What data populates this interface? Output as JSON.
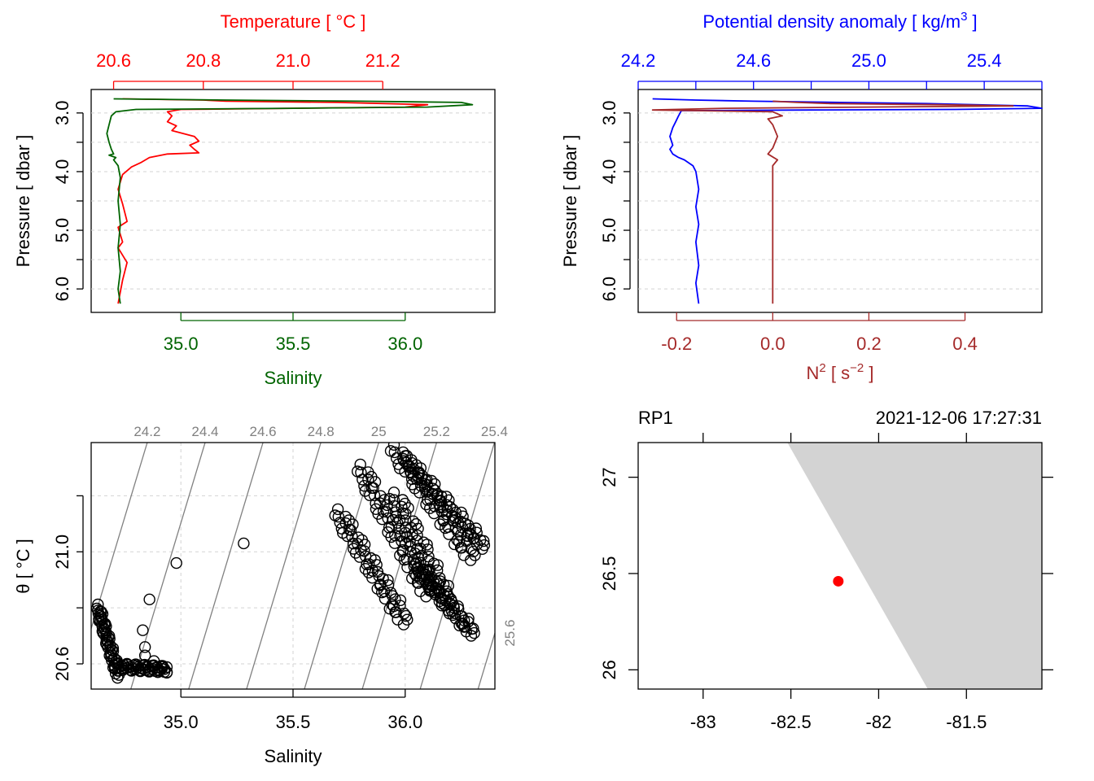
{
  "colors": {
    "temperature": "#ff0000",
    "salinity": "#006400",
    "density": "#0000ff",
    "n2": "#a52a2a",
    "isopycnal": "#808080",
    "grid": "#d3d3d3",
    "land": "#d3d3d3",
    "station": "#ff0000"
  },
  "chart_data": [
    {
      "id": "profile_ts",
      "type": "line",
      "top_axis_title": "Temperature [ °C ]",
      "top_ticks": [
        "20.6",
        "20.8",
        "21.0",
        "21.2"
      ],
      "bottom_axis_title": "Salinity",
      "bottom_ticks": [
        "35.0",
        "35.5",
        "36.0"
      ],
      "ylabel": "Pressure [ dbar ]",
      "y_ticks": [
        "3.0",
        "4.0",
        "5.0",
        "6.0"
      ],
      "temperature_range": [
        20.55,
        21.45
      ],
      "salinity_range": [
        34.6,
        36.4
      ],
      "pressure_range": [
        2.6,
        6.4
      ],
      "y_reversed": true,
      "grid": true,
      "series": [
        {
          "name": "Temperature",
          "x": [
            20.62,
            20.8,
            20.85,
            21.1,
            21.3,
            21.25,
            21.0,
            20.75,
            20.72,
            20.73,
            20.72,
            20.74,
            20.73,
            20.78,
            20.79,
            20.77,
            20.78,
            20.79,
            20.72,
            20.68,
            20.66,
            20.64,
            20.62,
            20.61,
            20.62,
            20.63,
            20.61,
            20.62,
            20.61,
            20.63,
            20.62,
            20.61
          ],
          "y": [
            2.76,
            2.78,
            2.8,
            2.82,
            2.86,
            2.9,
            2.92,
            2.94,
            2.98,
            3.05,
            3.15,
            3.22,
            3.3,
            3.4,
            3.48,
            3.55,
            3.62,
            3.68,
            3.7,
            3.76,
            3.85,
            3.92,
            4.05,
            4.3,
            4.55,
            4.85,
            4.95,
            5.2,
            5.3,
            5.55,
            5.85,
            6.25
          ]
        },
        {
          "name": "Salinity",
          "x": [
            34.7,
            35.2,
            35.8,
            36.25,
            36.3,
            36.1,
            35.5,
            34.8,
            34.71,
            34.69,
            34.68,
            34.67,
            34.68,
            34.69,
            34.7,
            34.68,
            34.71,
            34.7,
            34.72,
            34.73,
            34.72,
            34.73,
            34.72,
            34.73,
            34.72,
            34.73
          ],
          "y": [
            2.76,
            2.78,
            2.8,
            2.82,
            2.86,
            2.9,
            2.92,
            2.94,
            2.98,
            3.05,
            3.2,
            3.35,
            3.5,
            3.62,
            3.7,
            3.72,
            3.76,
            3.8,
            3.9,
            4.1,
            4.5,
            4.9,
            5.3,
            5.7,
            6.0,
            6.25
          ]
        }
      ]
    },
    {
      "id": "profile_density",
      "type": "line",
      "top_axis_title_main": "Potential density anomaly [ kg/m",
      "top_axis_title_sup": "3",
      "top_axis_title_end": " ]",
      "top_ticks": [
        "24.2",
        "24.6",
        "25.0",
        "25.4"
      ],
      "bottom_axis_title_main": "N",
      "bottom_axis_title_sup": "2",
      "bottom_axis_title_mid": " [ s",
      "bottom_axis_title_sup2": "−2",
      "bottom_axis_title_end": " ]",
      "bottom_ticks": [
        "-0.2",
        "0.0",
        "0.2",
        "0.4"
      ],
      "ylabel": "Pressure [ dbar ]",
      "y_ticks": [
        "3.0",
        "4.0",
        "5.0",
        "6.0"
      ],
      "density_range": [
        24.2,
        25.6
      ],
      "n2_range": [
        -0.28,
        0.56
      ],
      "pressure_range": [
        2.6,
        6.4
      ],
      "y_reversed": true,
      "grid": true,
      "series": [
        {
          "name": "Potential density anomaly",
          "x": [
            24.25,
            24.4,
            24.6,
            24.9,
            25.2,
            25.55,
            25.6,
            25.3,
            24.8,
            24.35,
            24.34,
            24.33,
            24.32,
            24.31,
            24.32,
            24.31,
            24.32,
            24.34,
            24.36,
            24.39,
            24.4,
            24.41,
            24.4,
            24.41,
            24.4,
            24.41,
            24.4,
            24.41
          ],
          "y": [
            2.76,
            2.78,
            2.8,
            2.82,
            2.84,
            2.88,
            2.92,
            2.94,
            2.95,
            2.96,
            3.05,
            3.15,
            3.25,
            3.4,
            3.55,
            3.62,
            3.7,
            3.76,
            3.8,
            3.9,
            4.0,
            4.3,
            4.6,
            4.9,
            5.2,
            5.6,
            5.9,
            6.25
          ]
        },
        {
          "name": "N2",
          "x": [
            0.0,
            0.05,
            0.12,
            0.35,
            0.5,
            0.2,
            -0.1,
            -0.25,
            0.0,
            0.02,
            -0.01,
            0.0,
            0.01,
            0.0,
            -0.01,
            0.01,
            0.0,
            0.0,
            0.0,
            0.0,
            0.0,
            0.0
          ],
          "y": [
            2.8,
            2.82,
            2.84,
            2.86,
            2.88,
            2.9,
            2.92,
            2.95,
            2.98,
            3.05,
            3.1,
            3.2,
            3.4,
            3.6,
            3.7,
            3.8,
            3.9,
            4.2,
            4.8,
            5.4,
            5.9,
            6.25
          ]
        }
      ]
    },
    {
      "id": "ts_diagram",
      "type": "scatter",
      "xlabel": "Salinity",
      "ylabel": "θ [ °C ]",
      "x_ticks": [
        "35.0",
        "35.5",
        "36.0"
      ],
      "y_ticks": [
        "20.6",
        "21.0"
      ],
      "xlim": [
        34.6,
        36.4
      ],
      "ylim": [
        20.51,
        21.39
      ],
      "grid": true,
      "isopycnal_labels": [
        "24.2",
        "24.4",
        "24.6",
        "24.8",
        "25",
        "25.2",
        "25.4",
        "25.6"
      ],
      "clusters": [
        {
          "x0": 34.63,
          "y0": 20.8,
          "x1": 34.72,
          "y1": 20.56,
          "width": 0.02
        },
        {
          "x0": 34.72,
          "y0": 20.59,
          "x1": 34.94,
          "y1": 20.58,
          "width": 0.02
        },
        {
          "x0": 35.7,
          "y0": 21.14,
          "x1": 36.0,
          "y1": 20.75,
          "width": 0.06
        },
        {
          "x0": 35.8,
          "y0": 21.3,
          "x1": 36.1,
          "y1": 20.85,
          "width": 0.06
        },
        {
          "x0": 35.95,
          "y0": 21.37,
          "x1": 36.3,
          "y1": 20.98,
          "width": 0.07
        },
        {
          "x0": 36.0,
          "y0": 21.33,
          "x1": 36.35,
          "y1": 21.02,
          "width": 0.05
        },
        {
          "x0": 35.95,
          "y0": 21.2,
          "x1": 36.2,
          "y1": 20.8,
          "width": 0.07
        },
        {
          "x0": 36.05,
          "y0": 20.95,
          "x1": 36.3,
          "y1": 20.71,
          "width": 0.05
        }
      ],
      "points": [
        {
          "x": 34.83,
          "y": 20.72
        },
        {
          "x": 34.84,
          "y": 20.66
        },
        {
          "x": 34.86,
          "y": 20.83
        },
        {
          "x": 34.98,
          "y": 20.96
        },
        {
          "x": 35.28,
          "y": 21.03
        },
        {
          "x": 34.84,
          "y": 20.63
        },
        {
          "x": 34.88,
          "y": 20.61
        }
      ]
    },
    {
      "id": "station_map",
      "type": "scatter",
      "station_label": "RP1",
      "datetime_label": "2021-12-06 17:27:31",
      "x_ticks": [
        "-83",
        "-82.5",
        "-82",
        "-81.5"
      ],
      "y_ticks": [
        "26",
        "26.5",
        "27"
      ],
      "xlim": [
        -83.37,
        -81.07
      ],
      "ylim": [
        25.9,
        27.18
      ],
      "coastline_lon": [
        -82.52,
        -81.72
      ],
      "coastline_lat": [
        27.18,
        25.9
      ],
      "station": {
        "lon": -82.23,
        "lat": 26.46
      }
    }
  ]
}
